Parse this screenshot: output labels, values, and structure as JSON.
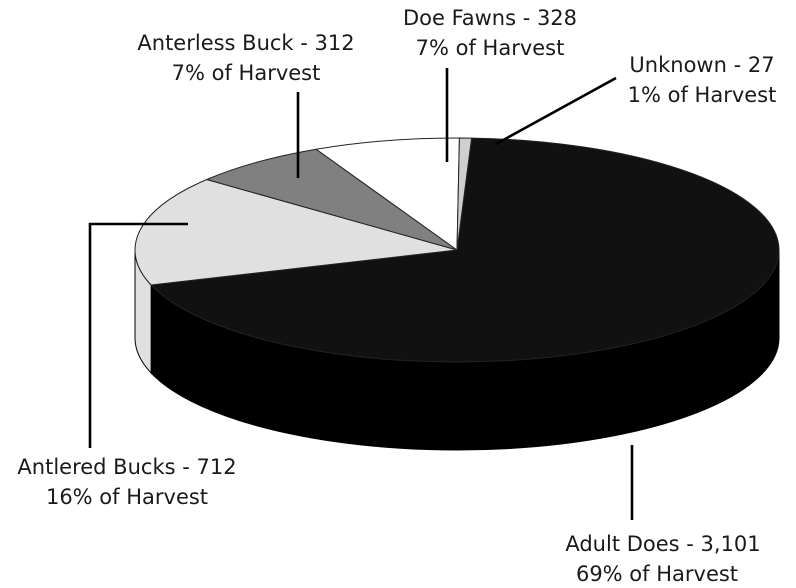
{
  "chart_data": {
    "type": "pie",
    "title": "",
    "slices": [
      {
        "name": "Adult Does",
        "value": 3101,
        "value_text": "3,101",
        "percent_text": "69% of Harvest",
        "label_text": "Adult Does -  3,101",
        "color": "#111111"
      },
      {
        "name": "Antlered Bucks",
        "value": 712,
        "value_text": "712",
        "percent_text": "16% of Harvest",
        "label_text": "Antlered Bucks - 712",
        "color": "#e0e0e0"
      },
      {
        "name": "Anterless Buck",
        "value": 312,
        "value_text": "312",
        "percent_text": "7% of Harvest",
        "label_text": "Anterless Buck - 312",
        "color": "#808080"
      },
      {
        "name": "Doe Fawns",
        "value": 328,
        "value_text": "328",
        "percent_text": "7% of Harvest",
        "label_text": "Doe Fawns - 328",
        "color": "#ffffff"
      },
      {
        "name": "Unknown",
        "value": 27,
        "value_text": "27",
        "percent_text": "1% of Harvest",
        "label_text": "Unknown - 27",
        "color": "#cfcfcf"
      }
    ],
    "style": "3d-pie",
    "legend": "none"
  }
}
